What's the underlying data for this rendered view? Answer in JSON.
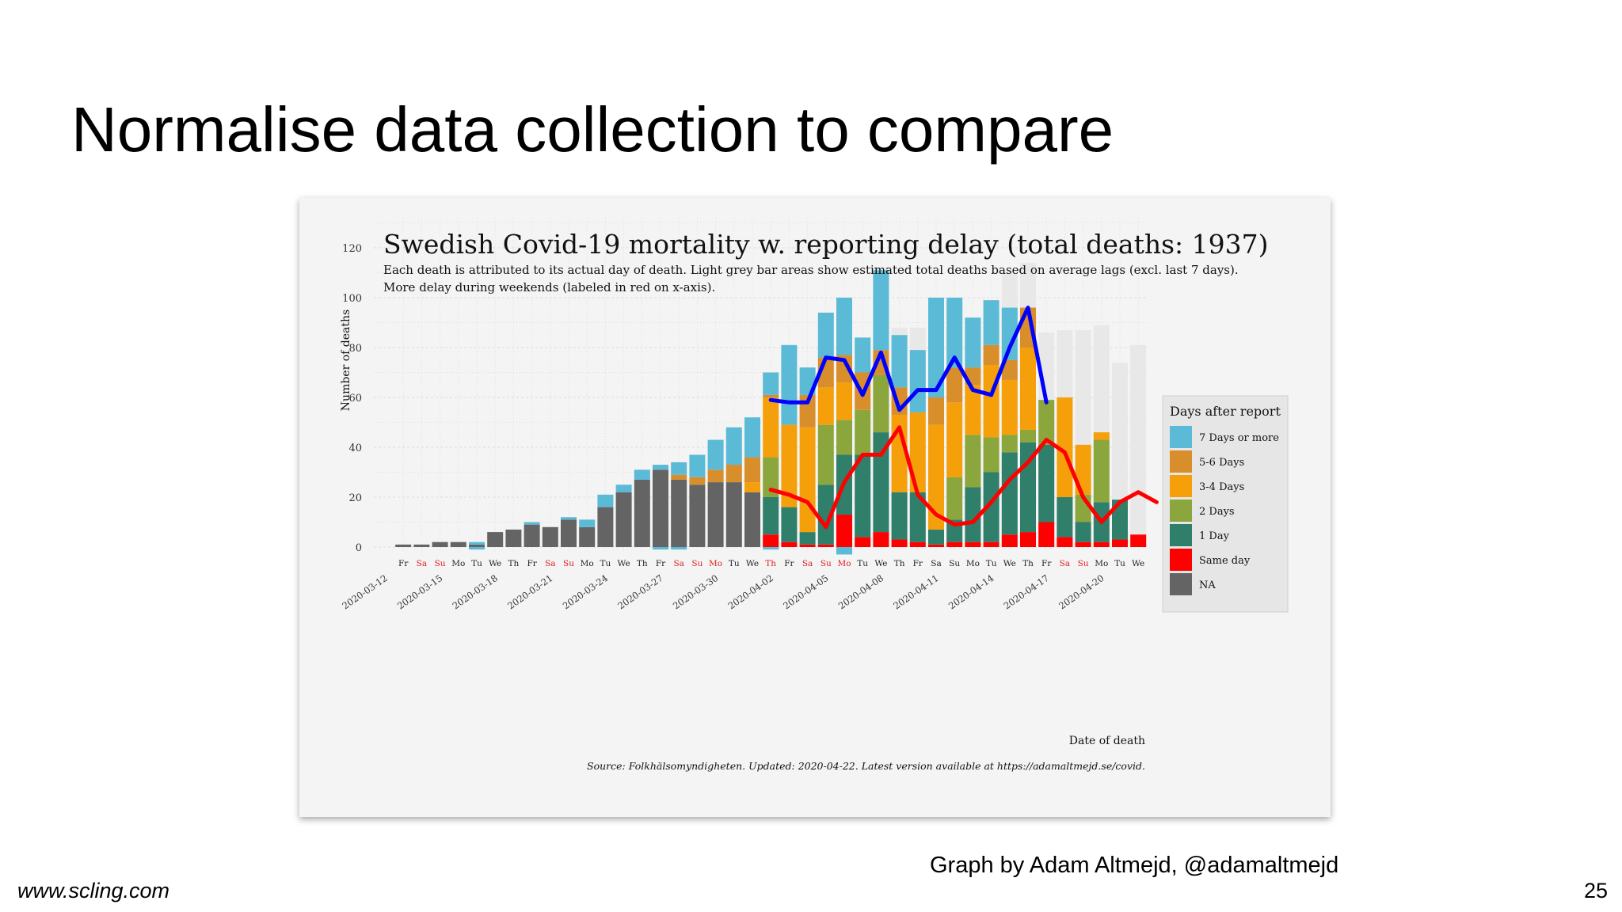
{
  "slide": {
    "title": "Normalise data collection to compare",
    "credit": "Graph by Adam Altmejd, @adamaltmejd",
    "site": "www.scling.com",
    "page_number": "25"
  },
  "chart_data": {
    "type": "bar",
    "stacked": true,
    "title": "Swedish Covid-19 mortality w. reporting delay (total deaths: 1937)",
    "subtitle": [
      "Each death is attributed to its actual day of death. Light grey bar areas show estimated total deaths based on average lags (excl. last 7 days).",
      "More delay during weekends (labeled in red on x-axis)."
    ],
    "ylabel": "Number of deaths",
    "xlabel": "Date of death",
    "source": "Source: Folkhälsomyndigheten. Updated: 2020-04-22. Latest version available at https://adamaltmejd.se/covid.",
    "ylim": [
      -3,
      132
    ],
    "yticks": [
      0,
      20,
      40,
      60,
      80,
      100,
      120
    ],
    "grid": true,
    "legend_position": "right",
    "legend_title": "Days after report",
    "categories": [
      "2020-03-13",
      "2020-03-14",
      "2020-03-15",
      "2020-03-16",
      "2020-03-17",
      "2020-03-18",
      "2020-03-19",
      "2020-03-20",
      "2020-03-21",
      "2020-03-22",
      "2020-03-23",
      "2020-03-24",
      "2020-03-25",
      "2020-03-26",
      "2020-03-27",
      "2020-03-28",
      "2020-03-29",
      "2020-03-30",
      "2020-03-31",
      "2020-04-01",
      "2020-04-02",
      "2020-04-03",
      "2020-04-04",
      "2020-04-05",
      "2020-04-06",
      "2020-04-07",
      "2020-04-08",
      "2020-04-09",
      "2020-04-10",
      "2020-04-11",
      "2020-04-12",
      "2020-04-13",
      "2020-04-14",
      "2020-04-15",
      "2020-04-16",
      "2020-04-17",
      "2020-04-18",
      "2020-04-19",
      "2020-04-20",
      "2020-04-21",
      "2020-04-22"
    ],
    "weekday_labels": [
      "Fr",
      "Sa",
      "Su",
      "Mo",
      "Tu",
      "We",
      "Th",
      "Fr",
      "Sa",
      "Su",
      "Mo",
      "Tu",
      "We",
      "Th",
      "Fr",
      "Sa",
      "Su",
      "Mo",
      "Tu",
      "We",
      "Th",
      "Fr",
      "Sa",
      "Su",
      "Mo",
      "Tu",
      "We",
      "Th",
      "Fr",
      "Sa",
      "Su",
      "Mo",
      "Tu",
      "We",
      "Th",
      "Fr",
      "Sa",
      "Su",
      "Mo",
      "Tu",
      "We"
    ],
    "weekend_flags": [
      false,
      true,
      true,
      false,
      false,
      false,
      false,
      false,
      true,
      true,
      false,
      false,
      false,
      false,
      false,
      true,
      true,
      true,
      false,
      false,
      true,
      false,
      true,
      true,
      true,
      false,
      false,
      false,
      false,
      false,
      false,
      false,
      false,
      false,
      false,
      false,
      true,
      true,
      false,
      false,
      false
    ],
    "date_tick_labels": [
      "2020-03-12",
      "2020-03-15",
      "2020-03-18",
      "2020-03-21",
      "2020-03-24",
      "2020-03-27",
      "2020-03-30",
      "2020-04-02",
      "2020-04-05",
      "2020-04-08",
      "2020-04-11",
      "2020-04-14",
      "2020-04-17",
      "2020-04-20"
    ],
    "date_tick_categories": [
      "2020-03-12",
      "2020-03-15",
      "2020-03-18",
      "2020-03-21",
      "2020-03-24",
      "2020-03-27",
      "2020-03-30",
      "2020-04-02",
      "2020-04-05",
      "2020-04-08",
      "2020-04-11",
      "2020-04-14",
      "2020-04-17",
      "2020-04-20"
    ],
    "series": [
      {
        "name": "NA",
        "color": "#646464",
        "values": [
          1,
          1,
          2,
          2,
          1,
          6,
          7,
          9,
          8,
          11,
          8,
          16,
          22,
          27,
          31,
          27,
          25,
          26,
          26,
          22,
          0,
          0,
          0,
          0,
          0,
          0,
          0,
          0,
          0,
          0,
          0,
          0,
          0,
          0,
          0,
          0,
          0,
          0,
          0,
          0,
          0
        ]
      },
      {
        "name": "Same day",
        "color": "#ff0000",
        "values": [
          0,
          0,
          0,
          0,
          0,
          0,
          0,
          0,
          0,
          0,
          0,
          0,
          0,
          0,
          0,
          0,
          0,
          0,
          0,
          0,
          5,
          2,
          1,
          1,
          13,
          4,
          6,
          3,
          2,
          1,
          2,
          2,
          2,
          5,
          6,
          10,
          4,
          2,
          2,
          3,
          5
        ]
      },
      {
        "name": "1 Day",
        "color": "#2f7f6b",
        "values": [
          0,
          0,
          0,
          0,
          0,
          0,
          0,
          0,
          0,
          0,
          0,
          0,
          0,
          0,
          0,
          0,
          0,
          0,
          0,
          0,
          15,
          14,
          5,
          24,
          24,
          33,
          40,
          19,
          20,
          6,
          9,
          22,
          28,
          33,
          36,
          31,
          16,
          8,
          16,
          16,
          0
        ]
      },
      {
        "name": "2 Days",
        "color": "#8aa63c",
        "values": [
          0,
          0,
          0,
          0,
          0,
          0,
          0,
          0,
          0,
          0,
          0,
          0,
          0,
          0,
          0,
          0,
          0,
          0,
          0,
          0,
          16,
          0,
          0,
          24,
          14,
          18,
          23,
          0,
          0,
          0,
          17,
          21,
          14,
          7,
          5,
          18,
          0,
          11,
          25,
          0,
          0
        ]
      },
      {
        "name": "3-4 Days",
        "color": "#f5a00a",
        "values": [
          0,
          0,
          0,
          0,
          0,
          0,
          0,
          0,
          0,
          0,
          0,
          0,
          0,
          0,
          0,
          0,
          0,
          0,
          0,
          4,
          24,
          33,
          42,
          15,
          15,
          0,
          0,
          31,
          32,
          42,
          30,
          20,
          29,
          22,
          33,
          0,
          40,
          20,
          3,
          0,
          0
        ]
      },
      {
        "name": "5-6 Days",
        "color": "#d98e2c",
        "values": [
          0,
          0,
          0,
          0,
          0,
          0,
          0,
          0,
          0,
          0,
          0,
          0,
          0,
          0,
          0,
          2,
          3,
          5,
          7,
          10,
          1,
          0,
          13,
          12,
          11,
          15,
          10,
          11,
          0,
          11,
          14,
          7,
          8,
          8,
          16,
          0,
          0,
          0,
          0,
          0,
          0
        ]
      },
      {
        "name": "7 Days or more",
        "color": "#5bbbd6",
        "values": [
          0,
          0,
          0,
          0,
          1,
          0,
          0,
          1,
          0,
          1,
          3,
          5,
          3,
          4,
          2,
          5,
          9,
          12,
          15,
          16,
          9,
          32,
          11,
          18,
          23,
          14,
          32,
          21,
          25,
          40,
          28,
          20,
          18,
          21,
          0,
          0,
          0,
          0,
          0,
          0,
          0
        ]
      }
    ],
    "negative_segments": [
      {
        "category": "2020-03-17",
        "color": "#5bbbd6",
        "value": -1
      },
      {
        "category": "2020-03-27",
        "color": "#5bbbd6",
        "value": -1
      },
      {
        "category": "2020-03-28",
        "color": "#5bbbd6",
        "value": -1
      },
      {
        "category": "2020-04-02",
        "color": "#5bbbd6",
        "value": -1
      },
      {
        "category": "2020-04-06",
        "color": "#5bbbd6",
        "value": -3
      }
    ],
    "estimated_total": {
      "name": "Estimated total",
      "color": "#e8e8e8",
      "values": [
        null,
        null,
        null,
        null,
        null,
        null,
        null,
        null,
        null,
        null,
        null,
        null,
        null,
        null,
        null,
        null,
        null,
        null,
        null,
        null,
        null,
        null,
        null,
        null,
        null,
        null,
        112,
        88,
        88,
        98,
        100,
        92,
        92,
        110,
        114,
        86,
        87,
        87,
        89,
        74,
        81
      ]
    },
    "lines": [
      {
        "name": "blue",
        "color": "#0000ff",
        "start_category": "2020-04-02",
        "values": [
          59,
          58,
          58,
          76,
          75,
          61,
          78,
          55,
          63,
          63,
          76,
          63,
          61,
          80,
          96,
          58
        ]
      },
      {
        "name": "red",
        "color": "#ff0000",
        "start_category": "2020-04-02",
        "values": [
          23,
          21,
          18,
          8,
          26,
          37,
          37,
          48,
          21,
          13,
          9,
          10,
          18,
          27,
          34,
          43,
          38,
          20,
          10,
          18,
          22,
          18
        ]
      }
    ]
  }
}
